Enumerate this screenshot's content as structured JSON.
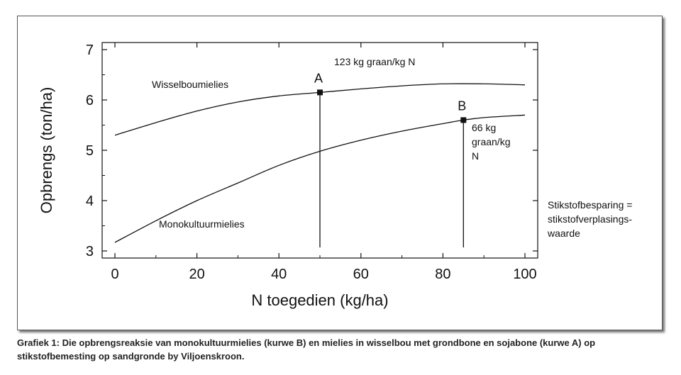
{
  "chart_data": {
    "type": "line",
    "xlabel": "N toegedien (kg/ha)",
    "ylabel": "Opbrengs (ton/ha)",
    "xlim": [
      0,
      100
    ],
    "ylim": [
      3,
      7
    ],
    "xticks": [
      0,
      20,
      40,
      60,
      80,
      100
    ],
    "yticks": [
      3,
      4,
      5,
      6,
      7
    ],
    "grid": false,
    "series": [
      {
        "name": "Wisselboumielies",
        "x": [
          0,
          10,
          20,
          30,
          40,
          50,
          60,
          70,
          80,
          90,
          100
        ],
        "values": [
          5.3,
          5.55,
          5.78,
          5.96,
          6.08,
          6.15,
          6.22,
          6.28,
          6.32,
          6.32,
          6.3
        ]
      },
      {
        "name": "Monokultuurmielies",
        "x": [
          0,
          10,
          20,
          30,
          40,
          50,
          60,
          70,
          80,
          85,
          90,
          100
        ],
        "values": [
          3.17,
          3.6,
          4.0,
          4.35,
          4.7,
          4.98,
          5.2,
          5.38,
          5.53,
          5.6,
          5.65,
          5.7
        ]
      }
    ],
    "markers": [
      {
        "label": "A",
        "x": 50,
        "y": 6.15
      },
      {
        "label": "B",
        "x": 85,
        "y": 5.6
      }
    ],
    "annotations": {
      "a_note": "123 kg graan/kg N",
      "b_note": [
        "66 kg",
        "graan/kg",
        "N"
      ],
      "side_note": [
        "Stikstofbesparing =",
        "stikstofverplasings-",
        "waarde"
      ]
    }
  },
  "caption": "Grafiek 1: Die opbrengsreaksie van monokultuurmielies (kurwe B) en mielies in wisselbou met grondbone en sojabone (kurwe A) op stikstofbemesting op sandgronde by Viljoenskroon."
}
